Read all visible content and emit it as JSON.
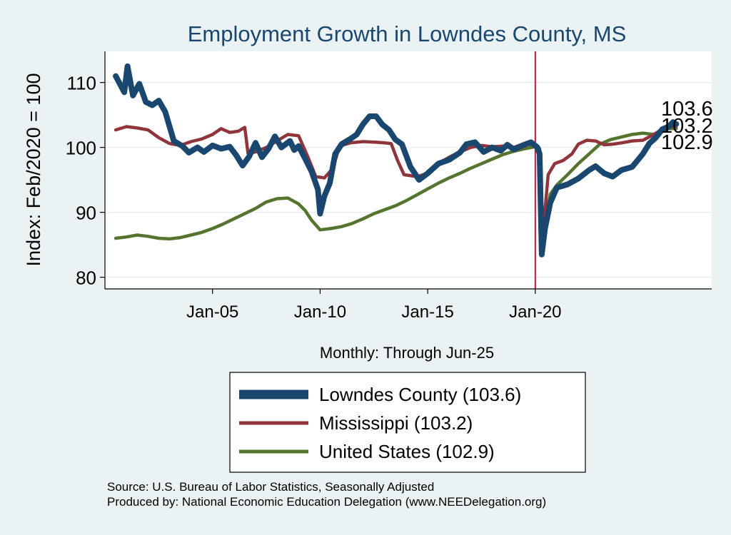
{
  "chart_data": {
    "type": "line",
    "title": "Employment Growth in Lowndes  County, MS",
    "xlabel": "Monthly: Through Jun-25",
    "ylabel": "Index: Feb/2020 = 100",
    "xlim": [
      2000.0,
      2028.2
    ],
    "ylim": [
      78.2,
      114.8
    ],
    "x_ticks": [
      {
        "value": 2005.0,
        "label": "Jan-05"
      },
      {
        "value": 2010.0,
        "label": "Jan-10"
      },
      {
        "value": 2015.0,
        "label": "Jan-15"
      },
      {
        "value": 2020.0,
        "label": "Jan-20"
      }
    ],
    "y_ticks": [
      80,
      90,
      100,
      110
    ],
    "reference_line_x": 2020.0,
    "grid": true,
    "legend_position": "bottom",
    "series": [
      {
        "name": "Lowndes  County",
        "color": "#1a476f",
        "end_value": 103.6,
        "end_label": "103.6",
        "legend_label": "Lowndes  County (103.6)",
        "points": [
          [
            2000.5,
            111.0
          ],
          [
            2000.9,
            108.5
          ],
          [
            2001.05,
            112.5
          ],
          [
            2001.3,
            108.0
          ],
          [
            2001.6,
            109.8
          ],
          [
            2001.9,
            107.0
          ],
          [
            2002.2,
            106.5
          ],
          [
            2002.5,
            107.2
          ],
          [
            2002.8,
            105.5
          ],
          [
            2003.2,
            101.0
          ],
          [
            2003.6,
            100.2
          ],
          [
            2003.9,
            99.2
          ],
          [
            2004.3,
            100.0
          ],
          [
            2004.6,
            99.3
          ],
          [
            2005.0,
            100.3
          ],
          [
            2005.4,
            99.8
          ],
          [
            2005.8,
            100.1
          ],
          [
            2006.1,
            98.8
          ],
          [
            2006.4,
            97.2
          ],
          [
            2006.7,
            98.6
          ],
          [
            2007.0,
            100.7
          ],
          [
            2007.3,
            98.5
          ],
          [
            2007.6,
            99.8
          ],
          [
            2007.9,
            101.7
          ],
          [
            2008.2,
            100.0
          ],
          [
            2008.6,
            101.0
          ],
          [
            2008.8,
            99.6
          ],
          [
            2009.0,
            100.2
          ],
          [
            2009.3,
            98.3
          ],
          [
            2009.6,
            96.3
          ],
          [
            2009.9,
            93.5
          ],
          [
            2010.0,
            89.8
          ],
          [
            2010.2,
            92.5
          ],
          [
            2010.45,
            94.5
          ],
          [
            2010.7,
            99.0
          ],
          [
            2011.0,
            100.5
          ],
          [
            2011.4,
            101.3
          ],
          [
            2011.7,
            102.0
          ],
          [
            2012.0,
            103.6
          ],
          [
            2012.3,
            104.8
          ],
          [
            2012.6,
            104.8
          ],
          [
            2012.9,
            103.5
          ],
          [
            2013.2,
            102.7
          ],
          [
            2013.5,
            101.2
          ],
          [
            2013.8,
            100.5
          ],
          [
            2014.2,
            97.0
          ],
          [
            2014.6,
            95.0
          ],
          [
            2015.0,
            96.0
          ],
          [
            2015.5,
            97.5
          ],
          [
            2016.0,
            98.1
          ],
          [
            2016.5,
            99.2
          ],
          [
            2016.8,
            100.5
          ],
          [
            2017.2,
            100.8
          ],
          [
            2017.6,
            99.3
          ],
          [
            2018.0,
            100.0
          ],
          [
            2018.4,
            99.5
          ],
          [
            2018.7,
            100.4
          ],
          [
            2019.0,
            99.7
          ],
          [
            2019.4,
            100.3
          ],
          [
            2019.8,
            100.8
          ],
          [
            2020.1,
            100.0
          ],
          [
            2020.2,
            99.0
          ],
          [
            2020.3,
            83.5
          ],
          [
            2020.45,
            87.5
          ],
          [
            2020.7,
            91.5
          ],
          [
            2021.0,
            93.8
          ],
          [
            2021.5,
            94.3
          ],
          [
            2022.0,
            95.2
          ],
          [
            2022.5,
            96.5
          ],
          [
            2022.8,
            97.1
          ],
          [
            2023.2,
            96.0
          ],
          [
            2023.6,
            95.5
          ],
          [
            2024.0,
            96.5
          ],
          [
            2024.5,
            97.0
          ],
          [
            2025.0,
            99.0
          ],
          [
            2025.3,
            100.6
          ],
          [
            2025.6,
            101.5
          ],
          [
            2025.9,
            102.8
          ],
          [
            2026.2,
            103.2
          ],
          [
            2026.4,
            103.9
          ],
          [
            2026.55,
            103.6
          ]
        ]
      },
      {
        "name": "Mississippi",
        "color": "#90353b",
        "end_value": 103.2,
        "end_label": "103.2",
        "legend_label": "Mississippi (103.2)",
        "points": [
          [
            2000.5,
            102.7
          ],
          [
            2001.0,
            103.2
          ],
          [
            2001.5,
            103.0
          ],
          [
            2002.0,
            102.7
          ],
          [
            2002.5,
            101.5
          ],
          [
            2003.0,
            100.6
          ],
          [
            2003.5,
            100.3
          ],
          [
            2004.0,
            100.9
          ],
          [
            2004.5,
            101.3
          ],
          [
            2005.0,
            102.0
          ],
          [
            2005.4,
            102.9
          ],
          [
            2005.8,
            102.3
          ],
          [
            2006.2,
            102.5
          ],
          [
            2006.5,
            103.1
          ],
          [
            2006.65,
            99.1
          ],
          [
            2007.0,
            99.3
          ],
          [
            2007.5,
            100.0
          ],
          [
            2008.0,
            101.0
          ],
          [
            2008.5,
            102.0
          ],
          [
            2009.0,
            101.8
          ],
          [
            2009.4,
            98.8
          ],
          [
            2009.8,
            95.5
          ],
          [
            2010.2,
            95.3
          ],
          [
            2010.6,
            96.8
          ],
          [
            2010.9,
            100.2
          ],
          [
            2011.4,
            100.7
          ],
          [
            2012.0,
            100.9
          ],
          [
            2012.6,
            100.8
          ],
          [
            2013.0,
            100.7
          ],
          [
            2013.3,
            100.6
          ],
          [
            2013.6,
            98.0
          ],
          [
            2013.9,
            95.8
          ],
          [
            2014.5,
            95.5
          ],
          [
            2015.0,
            96.0
          ],
          [
            2015.5,
            97.5
          ],
          [
            2016.0,
            98.5
          ],
          [
            2016.5,
            99.3
          ],
          [
            2017.0,
            100.0
          ],
          [
            2017.5,
            100.3
          ],
          [
            2018.0,
            100.1
          ],
          [
            2018.5,
            100.2
          ],
          [
            2019.0,
            100.0
          ],
          [
            2019.5,
            100.6
          ],
          [
            2020.0,
            100.3
          ],
          [
            2020.2,
            99.5
          ],
          [
            2020.35,
            86.5
          ],
          [
            2020.6,
            95.8
          ],
          [
            2020.9,
            97.5
          ],
          [
            2021.3,
            98.0
          ],
          [
            2021.7,
            99.0
          ],
          [
            2022.0,
            100.5
          ],
          [
            2022.4,
            101.1
          ],
          [
            2022.8,
            101.0
          ],
          [
            2023.2,
            100.4
          ],
          [
            2023.6,
            100.5
          ],
          [
            2024.0,
            100.7
          ],
          [
            2024.5,
            101.0
          ],
          [
            2025.0,
            101.1
          ],
          [
            2025.4,
            101.8
          ],
          [
            2025.8,
            102.6
          ],
          [
            2026.2,
            103.2
          ],
          [
            2026.55,
            103.2
          ]
        ]
      },
      {
        "name": "United States",
        "color": "#55752f",
        "end_value": 102.9,
        "end_label": "102.9",
        "legend_label": "United States (102.9)",
        "points": [
          [
            2000.5,
            86.0
          ],
          [
            2001.0,
            86.2
          ],
          [
            2001.5,
            86.5
          ],
          [
            2002.0,
            86.3
          ],
          [
            2002.5,
            86.0
          ],
          [
            2003.0,
            85.9
          ],
          [
            2003.5,
            86.1
          ],
          [
            2004.0,
            86.5
          ],
          [
            2004.5,
            86.9
          ],
          [
            2005.0,
            87.5
          ],
          [
            2005.5,
            88.2
          ],
          [
            2006.0,
            89.0
          ],
          [
            2006.5,
            89.8
          ],
          [
            2007.0,
            90.6
          ],
          [
            2007.5,
            91.6
          ],
          [
            2008.0,
            92.1
          ],
          [
            2008.5,
            92.2
          ],
          [
            2009.0,
            91.3
          ],
          [
            2009.3,
            90.3
          ],
          [
            2009.6,
            88.8
          ],
          [
            2010.0,
            87.3
          ],
          [
            2010.5,
            87.5
          ],
          [
            2011.0,
            87.8
          ],
          [
            2011.5,
            88.3
          ],
          [
            2012.0,
            89.0
          ],
          [
            2012.5,
            89.8
          ],
          [
            2013.0,
            90.4
          ],
          [
            2013.5,
            91.0
          ],
          [
            2014.0,
            91.8
          ],
          [
            2014.5,
            92.7
          ],
          [
            2015.0,
            93.6
          ],
          [
            2015.5,
            94.5
          ],
          [
            2016.0,
            95.3
          ],
          [
            2016.5,
            96.0
          ],
          [
            2017.0,
            96.8
          ],
          [
            2017.5,
            97.5
          ],
          [
            2018.0,
            98.2
          ],
          [
            2018.5,
            98.9
          ],
          [
            2019.0,
            99.4
          ],
          [
            2019.5,
            99.8
          ],
          [
            2020.0,
            100.1
          ],
          [
            2020.2,
            99.8
          ],
          [
            2020.3,
            85.5
          ],
          [
            2020.45,
            88.5
          ],
          [
            2020.7,
            92.8
          ],
          [
            2021.0,
            94.2
          ],
          [
            2021.5,
            95.8
          ],
          [
            2022.0,
            97.5
          ],
          [
            2022.5,
            99.0
          ],
          [
            2023.0,
            100.5
          ],
          [
            2023.5,
            101.2
          ],
          [
            2024.0,
            101.6
          ],
          [
            2024.5,
            102.0
          ],
          [
            2025.0,
            102.2
          ],
          [
            2025.5,
            102.0
          ],
          [
            2025.9,
            102.5
          ],
          [
            2026.2,
            102.9
          ],
          [
            2026.55,
            102.9
          ]
        ]
      }
    ],
    "source_lines": [
      "Source: U.S. Bureau of Labor Statistics, Seasonally Adjusted",
      "Produced by: National Economic Education Delegation (www.NEEDelegation.org)"
    ]
  }
}
